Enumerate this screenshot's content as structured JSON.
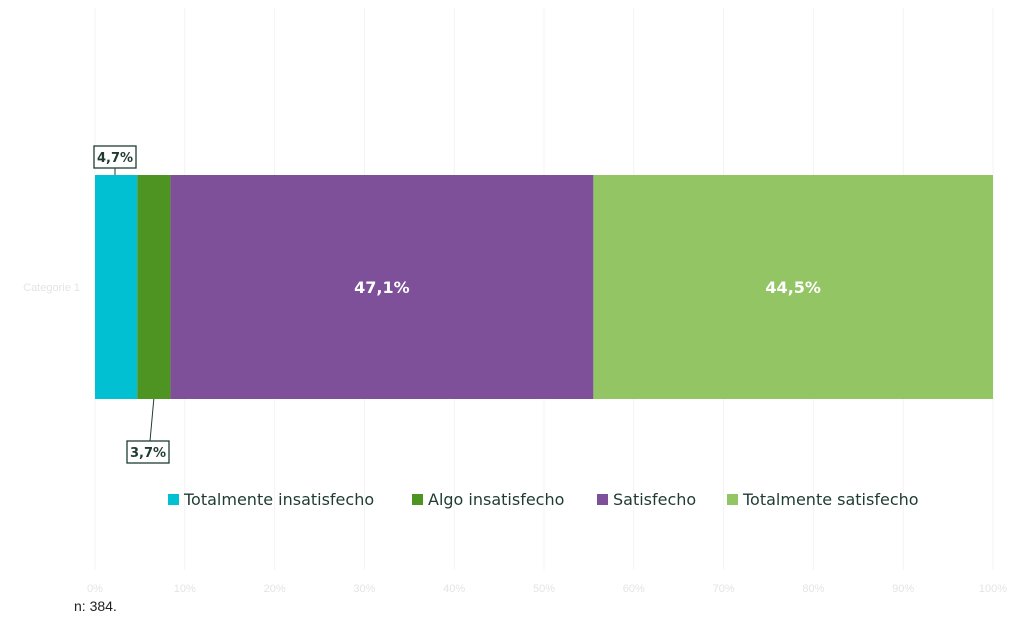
{
  "chart_data": {
    "type": "bar",
    "orientation": "horizontal",
    "stacked": true,
    "categories": [
      "Categorie 1"
    ],
    "series": [
      {
        "name": "Totalmente insatisfecho",
        "values": [
          4.7
        ],
        "label": "4,7%",
        "color": "#00C0D1"
      },
      {
        "name": "Algo insatisfecho",
        "values": [
          3.7
        ],
        "label": "3,7%",
        "color": "#4E9423"
      },
      {
        "name": "Satisfecho",
        "values": [
          47.1
        ],
        "label": "47,1%",
        "color": "#7E5099"
      },
      {
        "name": "Totalmente satisfecho",
        "values": [
          44.5
        ],
        "label": "44,5%",
        "color": "#93C565"
      }
    ],
    "xlim": [
      0,
      100
    ],
    "x_ticks": [
      "0%",
      "10%",
      "20%",
      "30%",
      "40%",
      "50%",
      "60%",
      "70%",
      "80%",
      "90%",
      "100%"
    ],
    "grid": true,
    "legend_position": "bottom"
  },
  "footnote": "n: 384."
}
